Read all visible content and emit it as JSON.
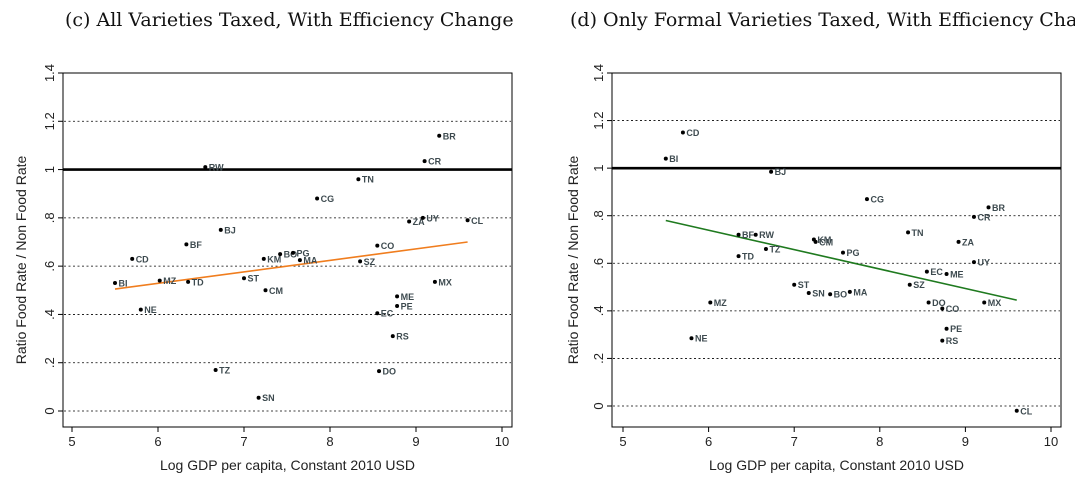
{
  "chart_data": [
    {
      "type": "scatter",
      "title": "(c) All Varieties Taxed, With Efficiency Change",
      "xlabel": "Log GDP per capita, Constant 2010 USD",
      "ylabel": "Ratio Food Rate / Non Food Rate",
      "xlim": [
        5,
        10
      ],
      "ylim": [
        0,
        1.4
      ],
      "xticks": [
        "5",
        "6",
        "7",
        "8",
        "9",
        "10"
      ],
      "yticks": [
        "0",
        ".2",
        ".4",
        ".6",
        ".8",
        "1",
        "1.2",
        "1.4"
      ],
      "grid": true,
      "reference_line_y": 1,
      "fit_line": {
        "color": "#f07d1e",
        "x": [
          5.5,
          9.6
        ],
        "y": [
          0.505,
          0.7
        ]
      },
      "points": [
        {
          "label": "BI",
          "x": 5.5,
          "y": 0.53
        },
        {
          "label": "CD",
          "x": 5.7,
          "y": 0.63
        },
        {
          "label": "NE",
          "x": 5.8,
          "y": 0.42
        },
        {
          "label": "MZ",
          "x": 6.02,
          "y": 0.54
        },
        {
          "label": "BF",
          "x": 6.33,
          "y": 0.69
        },
        {
          "label": "TD",
          "x": 6.35,
          "y": 0.535
        },
        {
          "label": "RW",
          "x": 6.55,
          "y": 1.01
        },
        {
          "label": "BJ",
          "x": 6.73,
          "y": 0.75
        },
        {
          "label": "TZ",
          "x": 6.67,
          "y": 0.17
        },
        {
          "label": "ST",
          "x": 7.0,
          "y": 0.55
        },
        {
          "label": "SN",
          "x": 7.17,
          "y": 0.055
        },
        {
          "label": "KM",
          "x": 7.23,
          "y": 0.63
        },
        {
          "label": "CM",
          "x": 7.25,
          "y": 0.5
        },
        {
          "label": "BO",
          "x": 7.42,
          "y": 0.65
        },
        {
          "label": "PG",
          "x": 7.57,
          "y": 0.655
        },
        {
          "label": "MA",
          "x": 7.65,
          "y": 0.625
        },
        {
          "label": "CG",
          "x": 7.85,
          "y": 0.88
        },
        {
          "label": "TN",
          "x": 8.33,
          "y": 0.96
        },
        {
          "label": "SZ",
          "x": 8.35,
          "y": 0.62
        },
        {
          "label": "CO",
          "x": 8.55,
          "y": 0.685
        },
        {
          "label": "EC",
          "x": 8.55,
          "y": 0.405
        },
        {
          "label": "DO",
          "x": 8.57,
          "y": 0.165
        },
        {
          "label": "RS",
          "x": 8.73,
          "y": 0.31
        },
        {
          "label": "ME",
          "x": 8.78,
          "y": 0.475
        },
        {
          "label": "PE",
          "x": 8.78,
          "y": 0.435
        },
        {
          "label": "ZA",
          "x": 8.92,
          "y": 0.785
        },
        {
          "label": "UY",
          "x": 9.08,
          "y": 0.8
        },
        {
          "label": "CR",
          "x": 9.1,
          "y": 1.035
        },
        {
          "label": "BR",
          "x": 9.27,
          "y": 1.14
        },
        {
          "label": "MX",
          "x": 9.22,
          "y": 0.535
        },
        {
          "label": "CL",
          "x": 9.6,
          "y": 0.79
        }
      ]
    },
    {
      "type": "scatter",
      "title": "(d) Only Formal Varieties Taxed, With Efficiency Change",
      "xlabel": "Log GDP per capita, Constant 2010 USD",
      "ylabel": "Ratio Food Rate / Non Food Rate",
      "xlim": [
        5,
        10
      ],
      "ylim": [
        0,
        1.4
      ],
      "xticks": [
        "5",
        "6",
        "7",
        "8",
        "9",
        "10"
      ],
      "yticks": [
        "0",
        ".2",
        ".4",
        ".6",
        ".8",
        "1",
        "1.2",
        "1.4"
      ],
      "grid": true,
      "reference_line_y": 1,
      "fit_line": {
        "color": "#1f7a1f",
        "x": [
          5.5,
          9.6
        ],
        "y": [
          0.78,
          0.445
        ]
      },
      "points": [
        {
          "label": "CD",
          "x": 5.7,
          "y": 1.15
        },
        {
          "label": "BI",
          "x": 5.5,
          "y": 1.04
        },
        {
          "label": "BJ",
          "x": 6.73,
          "y": 0.985
        },
        {
          "label": "RW",
          "x": 6.55,
          "y": 0.72
        },
        {
          "label": "BF",
          "x": 6.35,
          "y": 0.72
        },
        {
          "label": "TZ",
          "x": 6.67,
          "y": 0.66
        },
        {
          "label": "TD",
          "x": 6.35,
          "y": 0.63
        },
        {
          "label": "MZ",
          "x": 6.02,
          "y": 0.435
        },
        {
          "label": "NE",
          "x": 5.8,
          "y": 0.285
        },
        {
          "label": "KM",
          "x": 7.23,
          "y": 0.7
        },
        {
          "label": "CM",
          "x": 7.25,
          "y": 0.69
        },
        {
          "label": "ST",
          "x": 7.0,
          "y": 0.51
        },
        {
          "label": "SN",
          "x": 7.17,
          "y": 0.475
        },
        {
          "label": "BO",
          "x": 7.42,
          "y": 0.47
        },
        {
          "label": "MA",
          "x": 7.65,
          "y": 0.48
        },
        {
          "label": "PG",
          "x": 7.57,
          "y": 0.645
        },
        {
          "label": "CG",
          "x": 7.85,
          "y": 0.87
        },
        {
          "label": "TN",
          "x": 8.33,
          "y": 0.73
        },
        {
          "label": "SZ",
          "x": 8.35,
          "y": 0.51
        },
        {
          "label": "EC",
          "x": 8.55,
          "y": 0.565
        },
        {
          "label": "ME",
          "x": 8.78,
          "y": 0.555
        },
        {
          "label": "DO",
          "x": 8.57,
          "y": 0.435
        },
        {
          "label": "CO",
          "x": 8.73,
          "y": 0.41
        },
        {
          "label": "PE",
          "x": 8.78,
          "y": 0.325
        },
        {
          "label": "RS",
          "x": 8.73,
          "y": 0.275
        },
        {
          "label": "ZA",
          "x": 8.92,
          "y": 0.69
        },
        {
          "label": "UY",
          "x": 9.1,
          "y": 0.605
        },
        {
          "label": "CR",
          "x": 9.1,
          "y": 0.795
        },
        {
          "label": "BR",
          "x": 9.27,
          "y": 0.835
        },
        {
          "label": "MX",
          "x": 9.22,
          "y": 0.435
        },
        {
          "label": "CL",
          "x": 9.6,
          "y": -0.02
        }
      ]
    }
  ]
}
